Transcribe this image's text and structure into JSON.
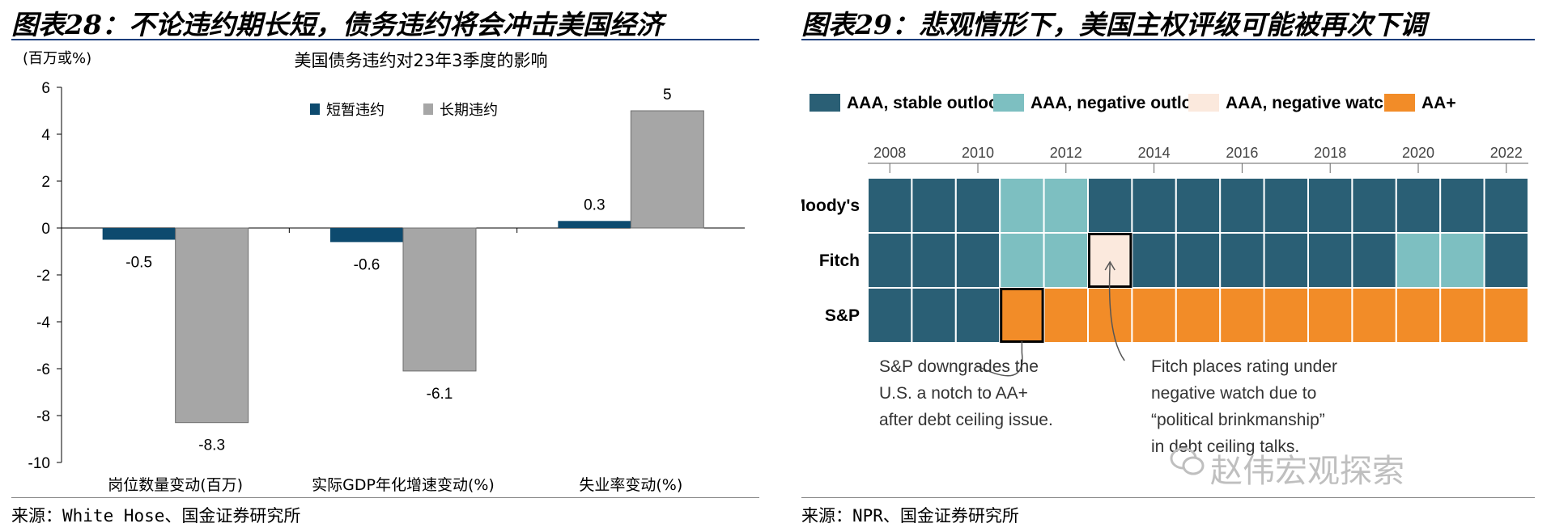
{
  "left": {
    "figure_title": "图表28：不论违约期长短，债务违约将会冲击美国经济",
    "source": "来源：White Hose、国金证券研究所"
  },
  "right": {
    "figure_title": "图表29：悲观情形下，美国主权评级可能被再次下调",
    "source": "来源：NPR、国金证券研究所",
    "watermark": "赵伟宏观探索"
  },
  "chart_data": [
    {
      "type": "bar",
      "title": "美国债务违约对23年3季度的影响",
      "ylabel": "(百万或%)",
      "xlabel": "",
      "ylim": [
        -10,
        6
      ],
      "yticks": [
        6,
        4,
        2,
        0,
        -2,
        -4,
        -6,
        -8,
        -10
      ],
      "categories": [
        "岗位数量变动(百万)",
        "实际GDP年化增速变动(%)",
        "失业率变动(%)"
      ],
      "legend_position": "top-right",
      "series": [
        {
          "name": "短暂违约",
          "color": "#0d4a6e",
          "values": [
            -0.5,
            -0.6,
            0.3
          ],
          "labels": [
            "-0.5",
            "-0.6",
            "0.3"
          ]
        },
        {
          "name": "长期违约",
          "color": "#a6a6a6",
          "values": [
            -8.3,
            -6.1,
            5
          ],
          "labels": [
            "-8.3",
            "-6.1",
            "5"
          ]
        }
      ]
    },
    {
      "type": "heatmap",
      "title": "",
      "x_ticks": [
        "2008",
        "2010",
        "2012",
        "2014",
        "2016",
        "2018",
        "2020",
        "2022"
      ],
      "x_start": 2008,
      "x_end": 2023,
      "rows": [
        "Moody's",
        "Fitch",
        "S&P"
      ],
      "legend": [
        {
          "key": "stable",
          "label": "AAA, stable outlook",
          "color": "#2a5f75"
        },
        {
          "key": "neg_outlook",
          "label": "AAA, negative outlook",
          "color": "#7dbfc1"
        },
        {
          "key": "neg_watch",
          "label": "AAA, negative watch",
          "color": "#fbe9dd"
        },
        {
          "key": "aa_plus",
          "label": "AA+",
          "color": "#f28c28"
        }
      ],
      "cells": [
        [
          "stable",
          "stable",
          "stable",
          "neg_outlook",
          "neg_outlook",
          "stable",
          "stable",
          "stable",
          "stable",
          "stable",
          "stable",
          "stable",
          "stable",
          "stable",
          "stable"
        ],
        [
          "stable",
          "stable",
          "stable",
          "neg_outlook",
          "neg_outlook",
          "neg_watch",
          "stable",
          "stable",
          "stable",
          "stable",
          "stable",
          "stable",
          "neg_outlook",
          "neg_outlook",
          "stable"
        ],
        [
          "stable",
          "stable",
          "stable",
          "aa_plus",
          "aa_plus",
          "aa_plus",
          "aa_plus",
          "aa_plus",
          "aa_plus",
          "aa_plus",
          "aa_plus",
          "aa_plus",
          "aa_plus",
          "aa_plus",
          "aa_plus"
        ]
      ],
      "annotations": [
        {
          "row": 2,
          "col": 3,
          "lines": [
            "S&P downgrades the",
            "U.S. a notch to AA+",
            "after debt ceiling issue."
          ]
        },
        {
          "row": 1,
          "col": 5,
          "lines": [
            "Fitch places rating under",
            "negative watch due to",
            "“political brinkmanship”",
            "in debt ceiling talks."
          ]
        }
      ]
    }
  ]
}
